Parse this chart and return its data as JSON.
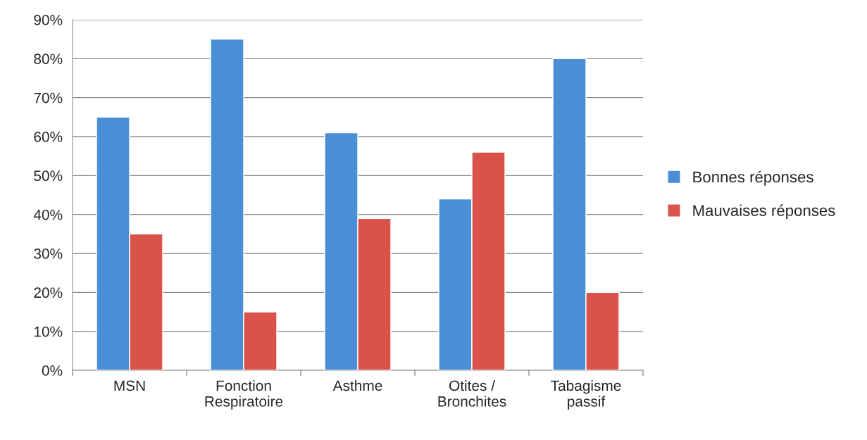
{
  "chart_data": {
    "type": "bar",
    "categories": [
      "MSN",
      "Fonction\nRespiratoire",
      "Asthme",
      "Otites /\nBronchites",
      "Tabagisme\npassif"
    ],
    "series": [
      {
        "name": "Bonnes réponses",
        "color": "#4a8fd6",
        "values": [
          65,
          85,
          61,
          44,
          80
        ]
      },
      {
        "name": "Mauvaises réponses",
        "color": "#d9534a",
        "values": [
          35,
          15,
          39,
          56,
          20
        ]
      }
    ],
    "ylim": [
      0,
      90
    ],
    "yticks": [
      {
        "value": 0,
        "label": "0%"
      },
      {
        "value": 10,
        "label": "10%"
      },
      {
        "value": 20,
        "label": "20%"
      },
      {
        "value": 30,
        "label": "30%"
      },
      {
        "value": 40,
        "label": "40%"
      },
      {
        "value": 50,
        "label": "50%"
      },
      {
        "value": 60,
        "label": "60%"
      },
      {
        "value": 70,
        "label": "70%"
      },
      {
        "value": 80,
        "label": "80%"
      },
      {
        "value": 90,
        "label": "90%"
      }
    ],
    "grid": "y",
    "legend": "right"
  }
}
